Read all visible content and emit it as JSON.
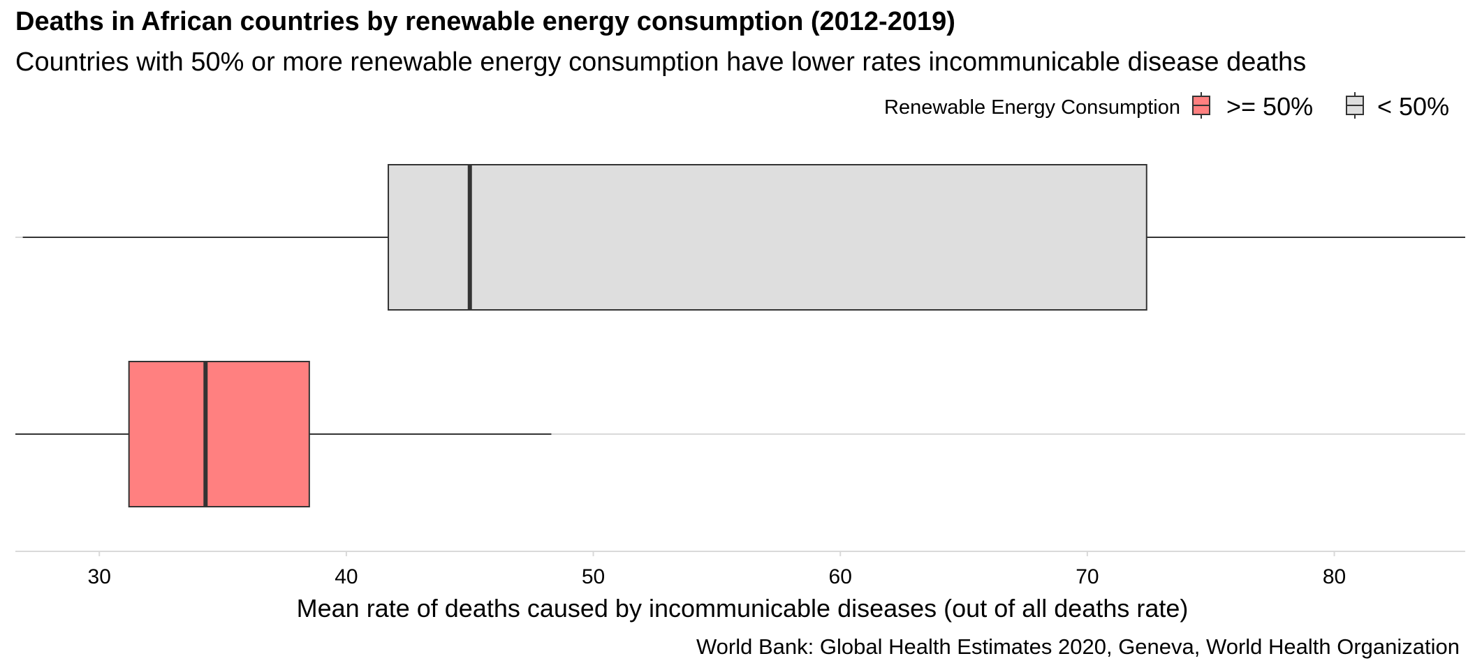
{
  "chart_data": {
    "type": "boxplot",
    "orientation": "horizontal",
    "title": "Deaths in African countries by renewable energy consumption (2012-2019)",
    "subtitle": "Countries with 50% or more renewable energy consumption have lower rates incommunicable disease deaths",
    "xlabel": "Mean rate of deaths caused by incommunicable diseases (out of all deaths rate)",
    "caption": "World Bank: Global Health Estimates 2020, Geneva, World Health Organization",
    "xlim": [
      26.6,
      85.3
    ],
    "x_ticks": [
      30,
      40,
      50,
      60,
      70,
      80
    ],
    "grid": true,
    "legend": {
      "title": "Renewable Energy Consumption",
      "position": "top-right",
      "entries": [
        {
          "label": ">= 50%",
          "color": "#FF8080"
        },
        {
          "label": "< 50%",
          "color": "#DEDEDE"
        }
      ]
    },
    "series": [
      {
        "name": ">= 50%",
        "color": "#FF8080",
        "whisker_low": 26.6,
        "q1": 31.2,
        "median": 34.3,
        "q3": 38.5,
        "whisker_high": 48.3
      },
      {
        "name": "< 50%",
        "color": "#DEDEDE",
        "whisker_low": 26.9,
        "q1": 41.7,
        "median": 45.0,
        "q3": 72.4,
        "whisker_high": 85.3
      }
    ]
  }
}
